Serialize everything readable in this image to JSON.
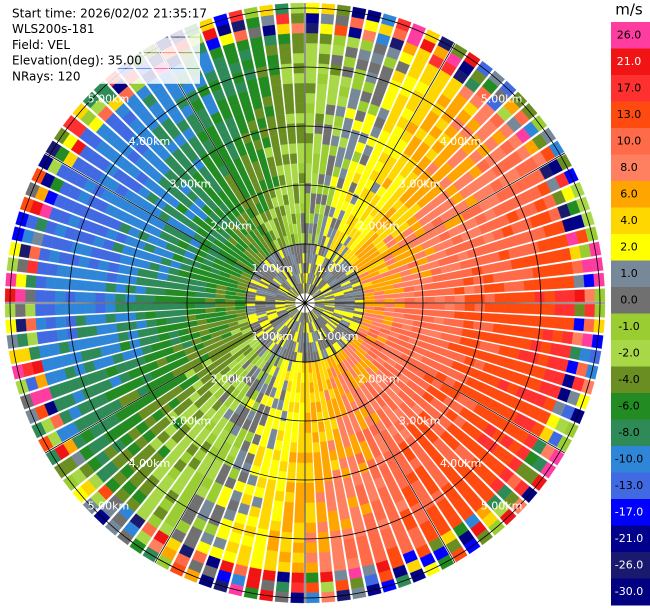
{
  "info": [
    "Start time: 2026/02/02 21:35:17",
    "WLS200s-181",
    "Field: VEL",
    "Elevation(deg): 35.00",
    "NRays: 120"
  ],
  "colorbar": {
    "unit": "m/s",
    "ticks": [
      {
        "value": 26,
        "label": "26.0"
      },
      {
        "value": 21,
        "label": "21.0"
      },
      {
        "value": 17,
        "label": "17.0"
      },
      {
        "value": 13,
        "label": "13.0"
      },
      {
        "value": 10,
        "label": "10.0"
      },
      {
        "value": 8,
        "label": "8.0"
      },
      {
        "value": 6,
        "label": "6.0"
      },
      {
        "value": 4,
        "label": "4.0"
      },
      {
        "value": 2,
        "label": "2.0"
      },
      {
        "value": 1,
        "label": "1.0"
      },
      {
        "value": 0,
        "label": "0.0"
      },
      {
        "value": -1,
        "label": "-1.0"
      },
      {
        "value": -2,
        "label": "-2.0"
      },
      {
        "value": -4,
        "label": "-4.0"
      },
      {
        "value": -6,
        "label": "-6.0"
      },
      {
        "value": -8,
        "label": "-8.0"
      },
      {
        "value": -10,
        "label": "-10.0"
      },
      {
        "value": -13,
        "label": "-13.0"
      },
      {
        "value": -17,
        "label": "-17.0"
      },
      {
        "value": -21,
        "label": "-21.0"
      },
      {
        "value": -26,
        "label": "-26.0"
      },
      {
        "value": -30,
        "label": "-30.0"
      }
    ],
    "colors": [
      "#ff3ca0",
      "#f01414",
      "#ff3030",
      "#ff4a10",
      "#ff6a48",
      "#ff8060",
      "#ffa500",
      "#ffd700",
      "#ffff00",
      "#778899",
      "#707070",
      "#9acd32",
      "#a8d848",
      "#6b8e23",
      "#228b22",
      "#2e8b57",
      "#2f86d8",
      "#4169e1",
      "#0000ff",
      "#00008b",
      "#191970",
      "#000080"
    ]
  },
  "rings": [
    {
      "value": 1,
      "label": "1.00km"
    },
    {
      "value": 2,
      "label": "2.00km"
    },
    {
      "value": 3,
      "label": "3.00km"
    },
    {
      "value": 4,
      "label": "4.00km"
    },
    {
      "value": 5,
      "label": "5.00km"
    }
  ]
}
